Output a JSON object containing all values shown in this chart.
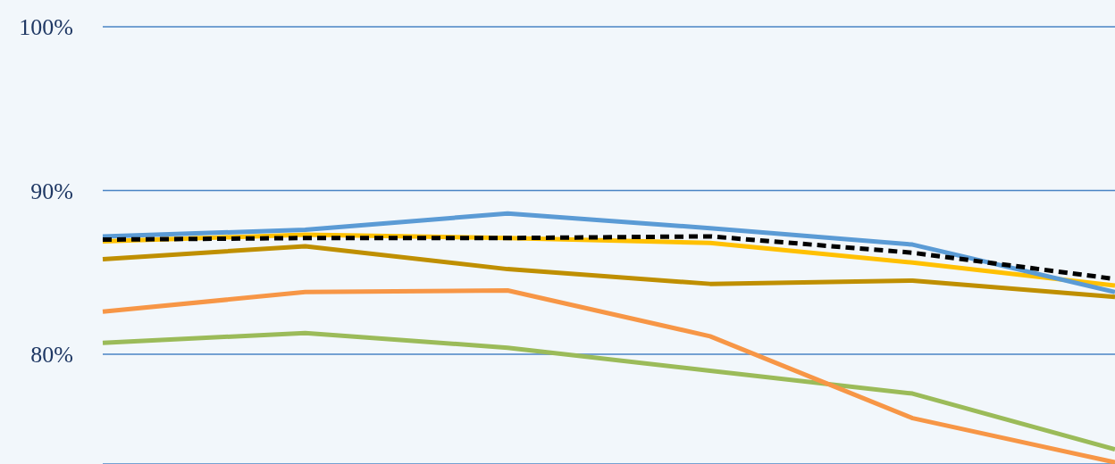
{
  "chart_data": {
    "type": "line",
    "categories": [
      null,
      null,
      null,
      null,
      null,
      null
    ],
    "series": [
      {
        "color": "#9bbb59",
        "values": [
          80.7,
          81.3,
          80.4,
          79.0,
          77.6,
          74.2
        ]
      },
      {
        "color": "#f79646",
        "values": [
          82.6,
          83.8,
          83.9,
          81.1,
          76.1,
          73.4
        ]
      },
      {
        "color": "#bf8f00",
        "values": [
          85.8,
          86.6,
          85.2,
          84.3,
          84.5,
          83.5
        ]
      },
      {
        "color": "#ffc000",
        "values": [
          86.9,
          87.3,
          87.1,
          86.8,
          85.6,
          84.2
        ]
      },
      {
        "color": "#5b9bd5",
        "values": [
          87.2,
          87.6,
          88.6,
          87.7,
          86.7,
          83.8
        ]
      },
      {
        "color": "#000000",
        "values": [
          87.0,
          87.1,
          87.1,
          87.2,
          86.2,
          84.6
        ],
        "line_style": "dashed"
      }
    ],
    "ylim": [
      73.3,
      100
    ],
    "yticks": [
      {
        "value": 80,
        "label": "80%"
      },
      {
        "value": 90,
        "label": "90%"
      },
      {
        "value": 100,
        "label": "100%"
      }
    ],
    "grid": "y",
    "tick_labels": "y",
    "marker": "none",
    "line_style": "solid",
    "legend": false
  }
}
